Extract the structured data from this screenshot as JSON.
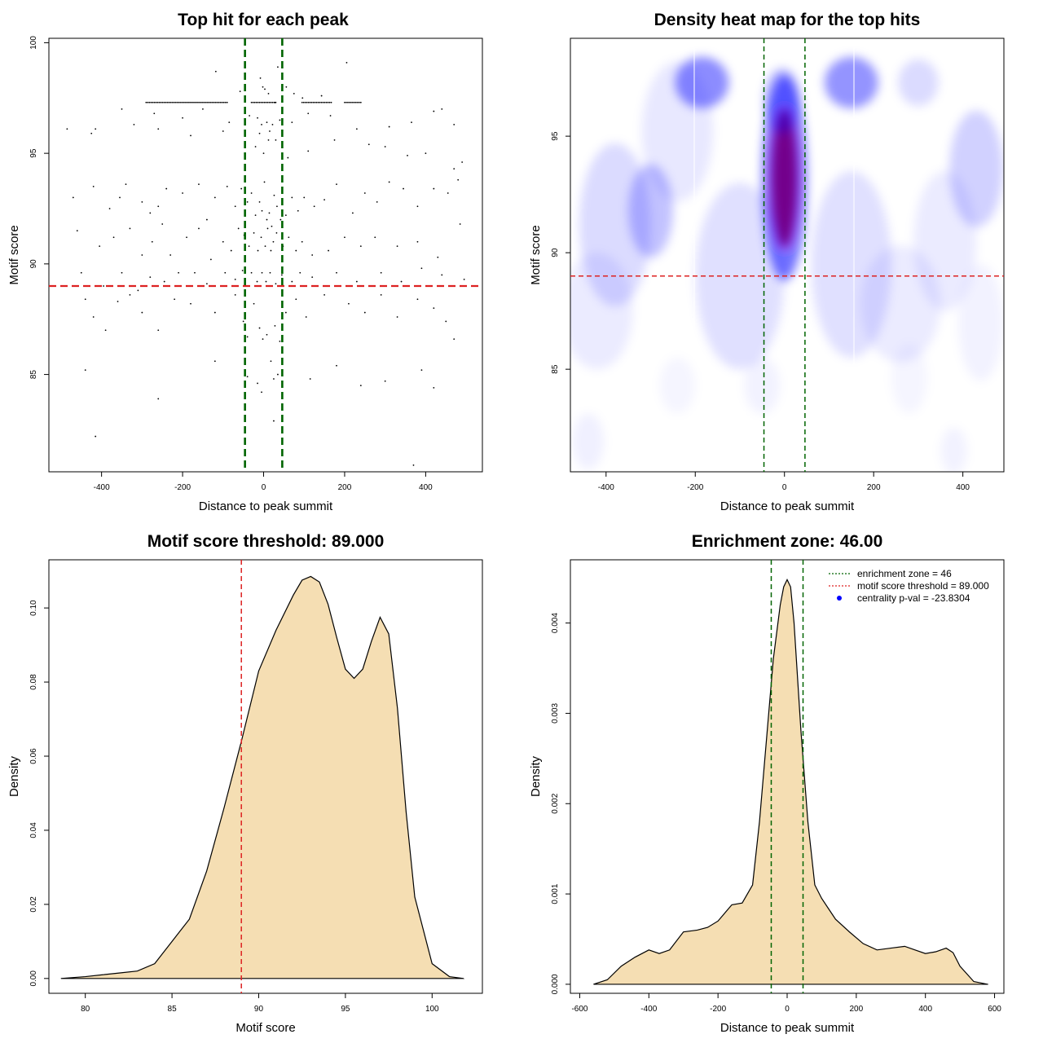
{
  "chart_data": [
    {
      "type": "scatter",
      "title": "Top hit for each peak",
      "xlabel": "Distance to peak summit",
      "ylabel": "Motif score",
      "xlim": [
        -530,
        540
      ],
      "ylim": [
        80.6,
        100.2
      ],
      "xticks": [
        -400,
        -200,
        0,
        200,
        400
      ],
      "yticks": [
        85,
        90,
        95,
        100
      ],
      "vlines": [
        -46,
        46
      ],
      "hline": 89.0,
      "colors": {
        "points": "#000000",
        "vlines": "#006400",
        "hline": "#dd2222"
      },
      "points": [
        [
          -118,
          98.7
        ],
        [
          35,
          98.9
        ],
        [
          205,
          99.1
        ],
        [
          -8,
          98.4
        ],
        [
          -2,
          98.0
        ],
        [
          3,
          97.9
        ],
        [
          12,
          97.7
        ],
        [
          28,
          97.3
        ],
        [
          56,
          98.0
        ],
        [
          75,
          97.7
        ],
        [
          96,
          97.5
        ],
        [
          143,
          97.6
        ],
        [
          -58,
          97.8
        ],
        [
          -45,
          97.4
        ],
        [
          -350,
          97.0
        ],
        [
          -270,
          96.8
        ],
        [
          -200,
          96.6
        ],
        [
          -150,
          97.0
        ],
        [
          -85,
          96.4
        ],
        [
          -35,
          96.7
        ],
        [
          -15,
          96.6
        ],
        [
          -5,
          96.3
        ],
        [
          8,
          96.4
        ],
        [
          15,
          96.0
        ],
        [
          22,
          96.3
        ],
        [
          40,
          96.5
        ],
        [
          70,
          96.4
        ],
        [
          110,
          96.8
        ],
        [
          165,
          96.7
        ],
        [
          230,
          96.1
        ],
        [
          310,
          96.2
        ],
        [
          365,
          96.4
        ],
        [
          420,
          96.9
        ],
        [
          440,
          97.0
        ],
        [
          470,
          96.3
        ],
        [
          -485,
          96.1
        ],
        [
          -415,
          96.1
        ],
        [
          -425,
          95.9
        ],
        [
          -320,
          96.3
        ],
        [
          -260,
          96.1
        ],
        [
          -180,
          95.8
        ],
        [
          -100,
          96.0
        ],
        [
          -10,
          95.9
        ],
        [
          -20,
          95.3
        ],
        [
          0,
          95.0
        ],
        [
          12,
          95.6
        ],
        [
          30,
          95.6
        ],
        [
          60,
          94.8
        ],
        [
          110,
          95.1
        ],
        [
          175,
          95.6
        ],
        [
          260,
          95.4
        ],
        [
          300,
          95.3
        ],
        [
          355,
          94.9
        ],
        [
          400,
          95.0
        ],
        [
          470,
          94.3
        ],
        [
          490,
          94.6
        ],
        [
          -470,
          93.0
        ],
        [
          -420,
          93.5
        ],
        [
          -380,
          92.5
        ],
        [
          -355,
          93.0
        ],
        [
          -340,
          93.6
        ],
        [
          -300,
          92.8
        ],
        [
          -280,
          92.3
        ],
        [
          -260,
          92.6
        ],
        [
          -240,
          93.4
        ],
        [
          -200,
          93.2
        ],
        [
          -160,
          93.6
        ],
        [
          -140,
          92.0
        ],
        [
          -120,
          93.0
        ],
        [
          -90,
          93.5
        ],
        [
          -70,
          92.6
        ],
        [
          -55,
          93.4
        ],
        [
          -40,
          92.8
        ],
        [
          -30,
          93.2
        ],
        [
          -20,
          92.2
        ],
        [
          -10,
          92.8
        ],
        [
          -4,
          92.4
        ],
        [
          2,
          93.7
        ],
        [
          8,
          92.0
        ],
        [
          14,
          92.3
        ],
        [
          20,
          91.7
        ],
        [
          26,
          93.1
        ],
        [
          33,
          92.6
        ],
        [
          42,
          92.0
        ],
        [
          55,
          92.2
        ],
        [
          70,
          93.0
        ],
        [
          85,
          92.4
        ],
        [
          100,
          93.0
        ],
        [
          125,
          92.6
        ],
        [
          150,
          92.9
        ],
        [
          180,
          93.6
        ],
        [
          220,
          92.3
        ],
        [
          250,
          93.2
        ],
        [
          280,
          92.8
        ],
        [
          310,
          93.7
        ],
        [
          345,
          93.4
        ],
        [
          380,
          92.6
        ],
        [
          420,
          93.4
        ],
        [
          455,
          93.2
        ],
        [
          480,
          93.8
        ],
        [
          -460,
          91.5
        ],
        [
          -405,
          90.8
        ],
        [
          -370,
          91.2
        ],
        [
          -330,
          91.6
        ],
        [
          -300,
          90.4
        ],
        [
          -275,
          91.0
        ],
        [
          -250,
          91.8
        ],
        [
          -230,
          90.4
        ],
        [
          -190,
          91.2
        ],
        [
          -160,
          91.6
        ],
        [
          -130,
          90.2
        ],
        [
          -100,
          91.0
        ],
        [
          -80,
          90.6
        ],
        [
          -62,
          91.6
        ],
        [
          -48,
          91.3
        ],
        [
          -36,
          90.8
        ],
        [
          -24,
          91.4
        ],
        [
          -14,
          90.6
        ],
        [
          -6,
          91.2
        ],
        [
          4,
          90.8
        ],
        [
          10,
          91.6
        ],
        [
          18,
          90.6
        ],
        [
          24,
          91.0
        ],
        [
          32,
          91.4
        ],
        [
          48,
          90.8
        ],
        [
          62,
          91.2
        ],
        [
          80,
          90.6
        ],
        [
          95,
          91.0
        ],
        [
          120,
          90.4
        ],
        [
          160,
          90.6
        ],
        [
          200,
          91.2
        ],
        [
          240,
          90.8
        ],
        [
          275,
          91.2
        ],
        [
          330,
          90.8
        ],
        [
          380,
          91.0
        ],
        [
          430,
          90.3
        ],
        [
          485,
          91.8
        ],
        [
          -450,
          89.6
        ],
        [
          -395,
          89.0
        ],
        [
          -350,
          89.6
        ],
        [
          -310,
          88.8
        ],
        [
          -280,
          89.4
        ],
        [
          -245,
          89.2
        ],
        [
          -210,
          89.6
        ],
        [
          -170,
          89.6
        ],
        [
          -140,
          89.1
        ],
        [
          -95,
          89.6
        ],
        [
          -70,
          89.3
        ],
        [
          -52,
          89.7
        ],
        [
          -30,
          89.6
        ],
        [
          -16,
          89.2
        ],
        [
          -4,
          89.6
        ],
        [
          6,
          89.2
        ],
        [
          16,
          89.6
        ],
        [
          30,
          89.1
        ],
        [
          45,
          89.5
        ],
        [
          70,
          89.2
        ],
        [
          90,
          89.6
        ],
        [
          120,
          89.4
        ],
        [
          180,
          89.6
        ],
        [
          230,
          89.2
        ],
        [
          290,
          89.6
        ],
        [
          340,
          89.2
        ],
        [
          390,
          89.8
        ],
        [
          440,
          89.5
        ],
        [
          495,
          89.3
        ],
        [
          -440,
          88.4
        ],
        [
          -420,
          87.6
        ],
        [
          -390,
          87.0
        ],
        [
          -360,
          88.3
        ],
        [
          -330,
          88.6
        ],
        [
          -300,
          87.8
        ],
        [
          -260,
          87.0
        ],
        [
          -220,
          88.4
        ],
        [
          -180,
          88.2
        ],
        [
          -120,
          87.8
        ],
        [
          -70,
          88.6
        ],
        [
          -50,
          87.4
        ],
        [
          -40,
          86.7
        ],
        [
          -24,
          88.2
        ],
        [
          -10,
          87.1
        ],
        [
          -2,
          86.6
        ],
        [
          8,
          86.8
        ],
        [
          18,
          85.6
        ],
        [
          28,
          87.2
        ],
        [
          40,
          86.5
        ],
        [
          55,
          87.8
        ],
        [
          80,
          88.4
        ],
        [
          105,
          87.6
        ],
        [
          150,
          88.6
        ],
        [
          210,
          88.2
        ],
        [
          250,
          87.8
        ],
        [
          290,
          88.6
        ],
        [
          330,
          87.6
        ],
        [
          380,
          88.4
        ],
        [
          420,
          88.0
        ],
        [
          450,
          87.4
        ],
        [
          470,
          86.6
        ],
        [
          -440,
          85.2
        ],
        [
          -260,
          83.9
        ],
        [
          -120,
          85.6
        ],
        [
          -40,
          84.9
        ],
        [
          -15,
          84.6
        ],
        [
          -5,
          84.2
        ],
        [
          25,
          84.8
        ],
        [
          35,
          85.0
        ],
        [
          115,
          84.8
        ],
        [
          180,
          85.4
        ],
        [
          240,
          84.5
        ],
        [
          300,
          84.7
        ],
        [
          390,
          85.2
        ],
        [
          420,
          84.4
        ],
        [
          -415,
          82.2
        ],
        [
          25,
          82.9
        ],
        [
          370,
          80.9
        ]
      ],
      "dense_row": {
        "y": 97.3,
        "segments": [
          [
            -290,
            -90
          ],
          [
            -30,
            30
          ],
          [
            95,
            170
          ],
          [
            200,
            240
          ]
        ]
      }
    },
    {
      "type": "heatmap",
      "title": "Density heat map for the top hits",
      "xlabel": "Distance to peak summit",
      "ylabel": "Motif score",
      "xlim": [
        -480,
        492
      ],
      "ylim": [
        80.6,
        99.2
      ],
      "xticks": [
        -400,
        -200,
        0,
        200,
        400
      ],
      "yticks": [
        85,
        90,
        95
      ],
      "vlines": [
        -46,
        46
      ],
      "hline": 89.0,
      "colors": {
        "low": "#ffffff",
        "mid": "#0000ff",
        "high": "#ff0000",
        "vlines": "#006400",
        "hline": "#dd2222"
      },
      "blobs": [
        [
          0,
          93.2,
          30,
          3.0,
          1.0
        ],
        [
          0,
          93.2,
          50,
          4.4,
          0.55
        ],
        [
          -5,
          96.5,
          40,
          1.4,
          0.3
        ],
        [
          -185,
          97.3,
          60,
          1.1,
          0.45
        ],
        [
          150,
          97.3,
          60,
          1.1,
          0.42
        ],
        [
          300,
          97.3,
          45,
          1.0,
          0.14
        ],
        [
          -300,
          91.8,
          50,
          2.0,
          0.24
        ],
        [
          -380,
          91.2,
          80,
          3.5,
          0.14
        ],
        [
          -240,
          95.2,
          80,
          3.0,
          0.09
        ],
        [
          430,
          93.6,
          60,
          2.5,
          0.18
        ],
        [
          360,
          90.5,
          70,
          3.0,
          0.08
        ],
        [
          -100,
          89.0,
          100,
          4.0,
          0.12
        ],
        [
          150,
          89.5,
          90,
          4.0,
          0.12
        ],
        [
          260,
          87.8,
          90,
          2.5,
          0.08
        ],
        [
          -420,
          87.5,
          80,
          2.5,
          0.08
        ],
        [
          440,
          87.0,
          50,
          2.5,
          0.05
        ],
        [
          -440,
          81.9,
          35,
          1.2,
          0.06
        ],
        [
          380,
          81.5,
          30,
          1.0,
          0.05
        ],
        [
          -240,
          84.3,
          40,
          1.2,
          0.04
        ],
        [
          -50,
          84.3,
          40,
          1.2,
          0.05
        ],
        [
          280,
          84.6,
          40,
          1.5,
          0.04
        ]
      ]
    },
    {
      "type": "area",
      "title": "Motif score threshold: 89.000",
      "xlabel": "Motif score",
      "ylabel": "Density",
      "xlim": [
        77.9,
        102.9
      ],
      "ylim": [
        -0.004,
        0.113
      ],
      "xticks": [
        80,
        85,
        90,
        95,
        100
      ],
      "yticks": [
        0.0,
        0.02,
        0.04,
        0.06,
        0.08,
        0.1
      ],
      "vline": 89.0,
      "colors": {
        "fill": "#f5deb3",
        "line": "#000000",
        "vline": "#dd2222"
      },
      "x": [
        78.6,
        80,
        81,
        82,
        83,
        84,
        85,
        86,
        87,
        88,
        89,
        90,
        91,
        92,
        92.5,
        93,
        93.5,
        94,
        94.5,
        95,
        95.5,
        96,
        96.5,
        97,
        97.5,
        98,
        98.5,
        99,
        100,
        101,
        101.8
      ],
      "y": [
        0,
        0.0005,
        0.001,
        0.0015,
        0.002,
        0.004,
        0.01,
        0.016,
        0.029,
        0.046,
        0.064,
        0.083,
        0.094,
        0.1035,
        0.1075,
        0.1085,
        0.107,
        0.101,
        0.092,
        0.0835,
        0.081,
        0.0835,
        0.091,
        0.0975,
        0.093,
        0.073,
        0.045,
        0.022,
        0.004,
        0.0005,
        0
      ]
    },
    {
      "type": "area",
      "title": "Enrichment zone: 46.00",
      "xlabel": "Distance to peak summit",
      "ylabel": "Density",
      "xlim": [
        -627,
        627
      ],
      "ylim": [
        -0.0001,
        0.0047
      ],
      "xticks": [
        -600,
        -400,
        -200,
        0,
        200,
        400,
        600
      ],
      "yticks": [
        0.0,
        0.001,
        0.002,
        0.003,
        0.004
      ],
      "vlines": [
        -46,
        46
      ],
      "colors": {
        "fill": "#f5deb3",
        "line": "#000000",
        "vlines": "#006400",
        "hline": "#dd2222",
        "dot": "#0000ff"
      },
      "x": [
        -560,
        -520,
        -480,
        -440,
        -400,
        -370,
        -340,
        -300,
        -260,
        -230,
        -200,
        -160,
        -130,
        -100,
        -80,
        -60,
        -40,
        -20,
        -10,
        0,
        10,
        20,
        40,
        60,
        80,
        100,
        140,
        180,
        220,
        260,
        300,
        340,
        370,
        400,
        430,
        460,
        480,
        500,
        540,
        580
      ],
      "y": [
        0,
        5e-05,
        0.0002,
        0.0003,
        0.00038,
        0.00034,
        0.00038,
        0.00058,
        0.0006,
        0.00063,
        0.0007,
        0.00088,
        0.0009,
        0.0011,
        0.0018,
        0.0027,
        0.0036,
        0.0042,
        0.0044,
        0.00448,
        0.0044,
        0.004,
        0.0028,
        0.0018,
        0.0011,
        0.00095,
        0.00072,
        0.00058,
        0.00045,
        0.00038,
        0.0004,
        0.00042,
        0.00038,
        0.00034,
        0.00036,
        0.0004,
        0.00035,
        0.0002,
        3e-05,
        0
      ],
      "legend": [
        {
          "label": "enrichment zone = 46",
          "kind": "dotted-line",
          "color": "#006400"
        },
        {
          "label": "motif score threshold = 89.000",
          "kind": "dotted-line",
          "color": "#dd2222"
        },
        {
          "label": "centrality p-val = -23.8304",
          "kind": "dot",
          "color": "#0000ff"
        }
      ],
      "legend_position": "top-right"
    }
  ]
}
